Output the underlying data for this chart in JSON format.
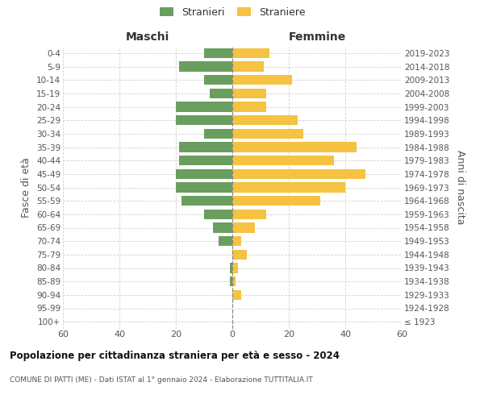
{
  "age_groups": [
    "100+",
    "95-99",
    "90-94",
    "85-89",
    "80-84",
    "75-79",
    "70-74",
    "65-69",
    "60-64",
    "55-59",
    "50-54",
    "45-49",
    "40-44",
    "35-39",
    "30-34",
    "25-29",
    "20-24",
    "15-19",
    "10-14",
    "5-9",
    "0-4"
  ],
  "birth_years": [
    "≤ 1923",
    "1924-1928",
    "1929-1933",
    "1934-1938",
    "1939-1943",
    "1944-1948",
    "1949-1953",
    "1954-1958",
    "1959-1963",
    "1964-1968",
    "1969-1973",
    "1974-1978",
    "1979-1983",
    "1984-1988",
    "1989-1993",
    "1994-1998",
    "1999-2003",
    "2004-2008",
    "2009-2013",
    "2014-2018",
    "2019-2023"
  ],
  "males": [
    0,
    0,
    0,
    1,
    1,
    0,
    5,
    7,
    10,
    18,
    20,
    20,
    19,
    19,
    10,
    20,
    20,
    8,
    10,
    19,
    10
  ],
  "females": [
    0,
    0,
    3,
    1,
    2,
    5,
    3,
    8,
    12,
    31,
    40,
    47,
    36,
    44,
    25,
    23,
    12,
    12,
    21,
    11,
    13
  ],
  "male_color": "#6a9e5e",
  "female_color": "#f5c242",
  "legend_male": "Stranieri",
  "legend_female": "Straniere",
  "title_maschi": "Maschi",
  "title_femmine": "Femmine",
  "ylabel_left": "Fasce di età",
  "ylabel_right": "Anni di nascita",
  "xlim": 60,
  "main_title": "Popolazione per cittadinanza straniera per età e sesso - 2024",
  "subtitle": "COMUNE DI PATTI (ME) - Dati ISTAT al 1° gennaio 2024 - Elaborazione TUTTITALIA.IT",
  "bg_color": "#ffffff",
  "grid_color": "#cccccc",
  "bar_height": 0.75,
  "center_line_color": "#888888"
}
